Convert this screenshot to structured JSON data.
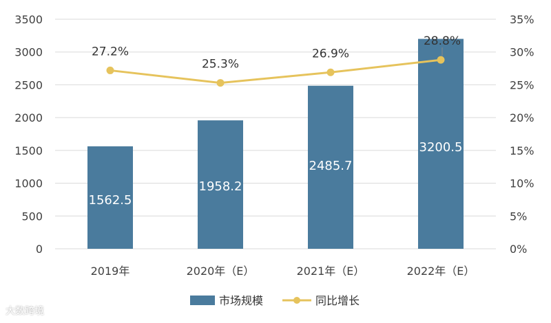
{
  "chart_data": {
    "type": "bar",
    "categories": [
      "2019年",
      "2020年（E）",
      "2021年（E）",
      "2022年（E）"
    ],
    "series": [
      {
        "name": "市场规模",
        "kind": "bar",
        "axis": "left",
        "values": [
          1562.5,
          1958.2,
          2485.7,
          3200.5
        ],
        "labels": [
          "1562.5",
          "1958.2",
          "2485.7",
          "3200.5"
        ]
      },
      {
        "name": "同比增长",
        "kind": "line",
        "axis": "right",
        "values": [
          27.2,
          25.3,
          26.9,
          28.8
        ],
        "labels": [
          "27.2%",
          "25.3%",
          "26.9%",
          "28.8%"
        ]
      }
    ],
    "left_axis": {
      "ticks": [
        "0",
        "500",
        "1000",
        "1500",
        "2000",
        "2500",
        "3000",
        "3500"
      ],
      "range": [
        0,
        3500
      ]
    },
    "right_axis": {
      "ticks": [
        "0%",
        "5%",
        "10%",
        "15%",
        "20%",
        "25%",
        "30%",
        "35%"
      ],
      "range": [
        0,
        35
      ]
    },
    "grid": true,
    "legend_position": "bottom"
  },
  "colors": {
    "bar": "#4a7b9d",
    "line": "#e6c35c",
    "grid": "#d9d9d9",
    "watermark": "#c9cfe0"
  },
  "watermark": "大数跨境"
}
